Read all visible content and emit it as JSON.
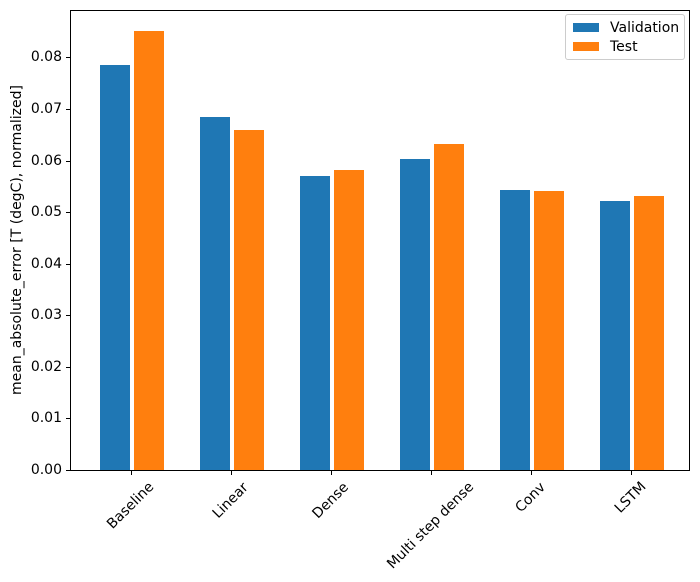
{
  "chart_data": {
    "type": "bar",
    "title": "",
    "categories": [
      "Baseline",
      "Linear",
      "Dense",
      "Multi step dense",
      "Conv",
      "LSTM"
    ],
    "series": [
      {
        "name": "Validation",
        "color": "#1f77b4",
        "values": [
          0.0785,
          0.0685,
          0.057,
          0.0604,
          0.0543,
          0.0522
        ]
      },
      {
        "name": "Test",
        "color": "#ff7f0e",
        "values": [
          0.0852,
          0.066,
          0.0581,
          0.0632,
          0.0541,
          0.0531
        ]
      }
    ],
    "xlabel": "",
    "ylabel": "mean_absolute_error [T (degC), normalized]",
    "ylim": [
      0,
      0.0892
    ],
    "yticks": [
      0.0,
      0.01,
      0.02,
      0.03,
      0.04,
      0.05,
      0.06,
      0.07,
      0.08
    ],
    "ytick_labels": [
      "0.00",
      "0.01",
      "0.02",
      "0.03",
      "0.04",
      "0.05",
      "0.06",
      "0.07",
      "0.08"
    ],
    "xtick_rotation_deg": 45,
    "grid": false,
    "legend": {
      "position": "upper right",
      "entries": [
        "Validation",
        "Test"
      ]
    }
  },
  "figure": {
    "background": "#ffffff",
    "axis_color": "#000000",
    "legend_border_color": "#cccccc"
  }
}
